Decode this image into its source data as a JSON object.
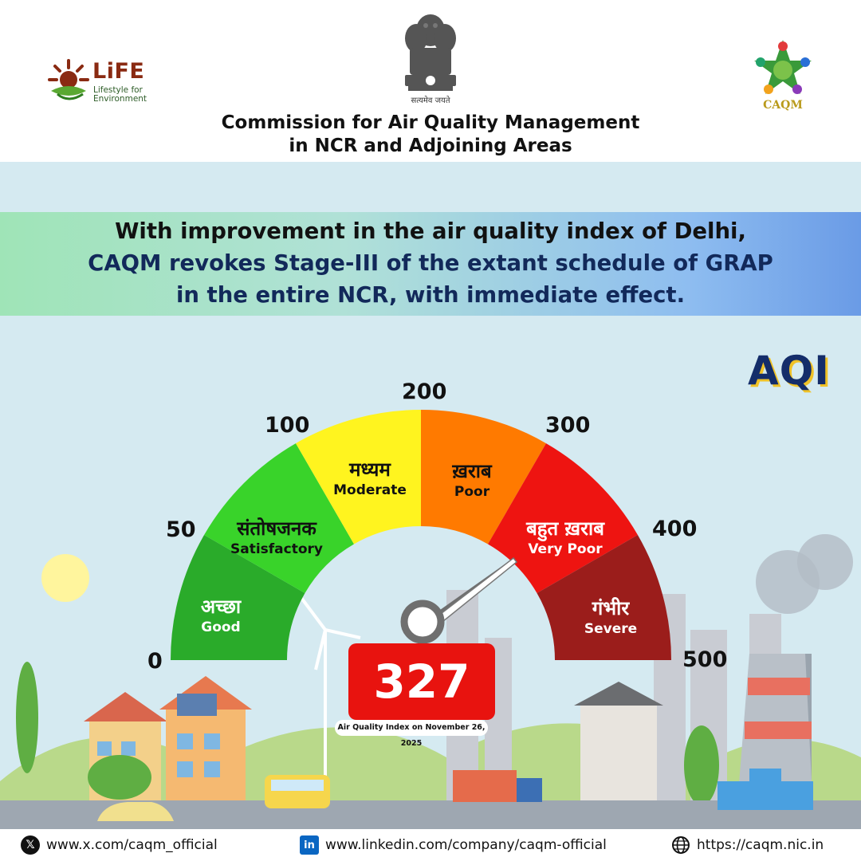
{
  "header": {
    "org_title_line1": "Commission for Air Quality Management",
    "org_title_line2": "in NCR and Adjoining Areas",
    "motto": "सत्यमेव जयते",
    "life_logo_word": "LiFE",
    "life_logo_sub": "Lifestyle for Environment",
    "caqm_logo_word": "CAQM"
  },
  "banner": {
    "line1": "With improvement in the air quality index of Delhi,",
    "line2": "CAQM revokes Stage-III of the extant schedule of GRAP",
    "line3": "in the entire NCR, with immediate effect."
  },
  "aqi_label": "AQI",
  "gauge": {
    "ticks": [
      "0",
      "50",
      "100",
      "200",
      "300",
      "400",
      "500"
    ],
    "bands": [
      {
        "hi": "अच्छा",
        "en": "Good",
        "color": "#2aab2a"
      },
      {
        "hi": "संतोषजनक",
        "en": "Satisfactory",
        "color": "#39d32a"
      },
      {
        "hi": "मध्यम",
        "en": "Moderate",
        "color": "#fff41f"
      },
      {
        "hi": "ख़राब",
        "en": "Poor",
        "color": "#ff7a00"
      },
      {
        "hi": "बहुत ख़राब",
        "en": "Very Poor",
        "color": "#ee1411"
      },
      {
        "hi": "गंभीर",
        "en": "Severe",
        "color": "#9b1d1b"
      }
    ],
    "value": "327",
    "value_caption": "Air Quality Index on November 26, 2025",
    "value_color": "#e8130f"
  },
  "footer": {
    "x_url": "www.x.com/caqm_official",
    "linkedin_url": "www.linkedin.com/company/caqm-official",
    "web_url": "https://caqm.nic.in"
  }
}
